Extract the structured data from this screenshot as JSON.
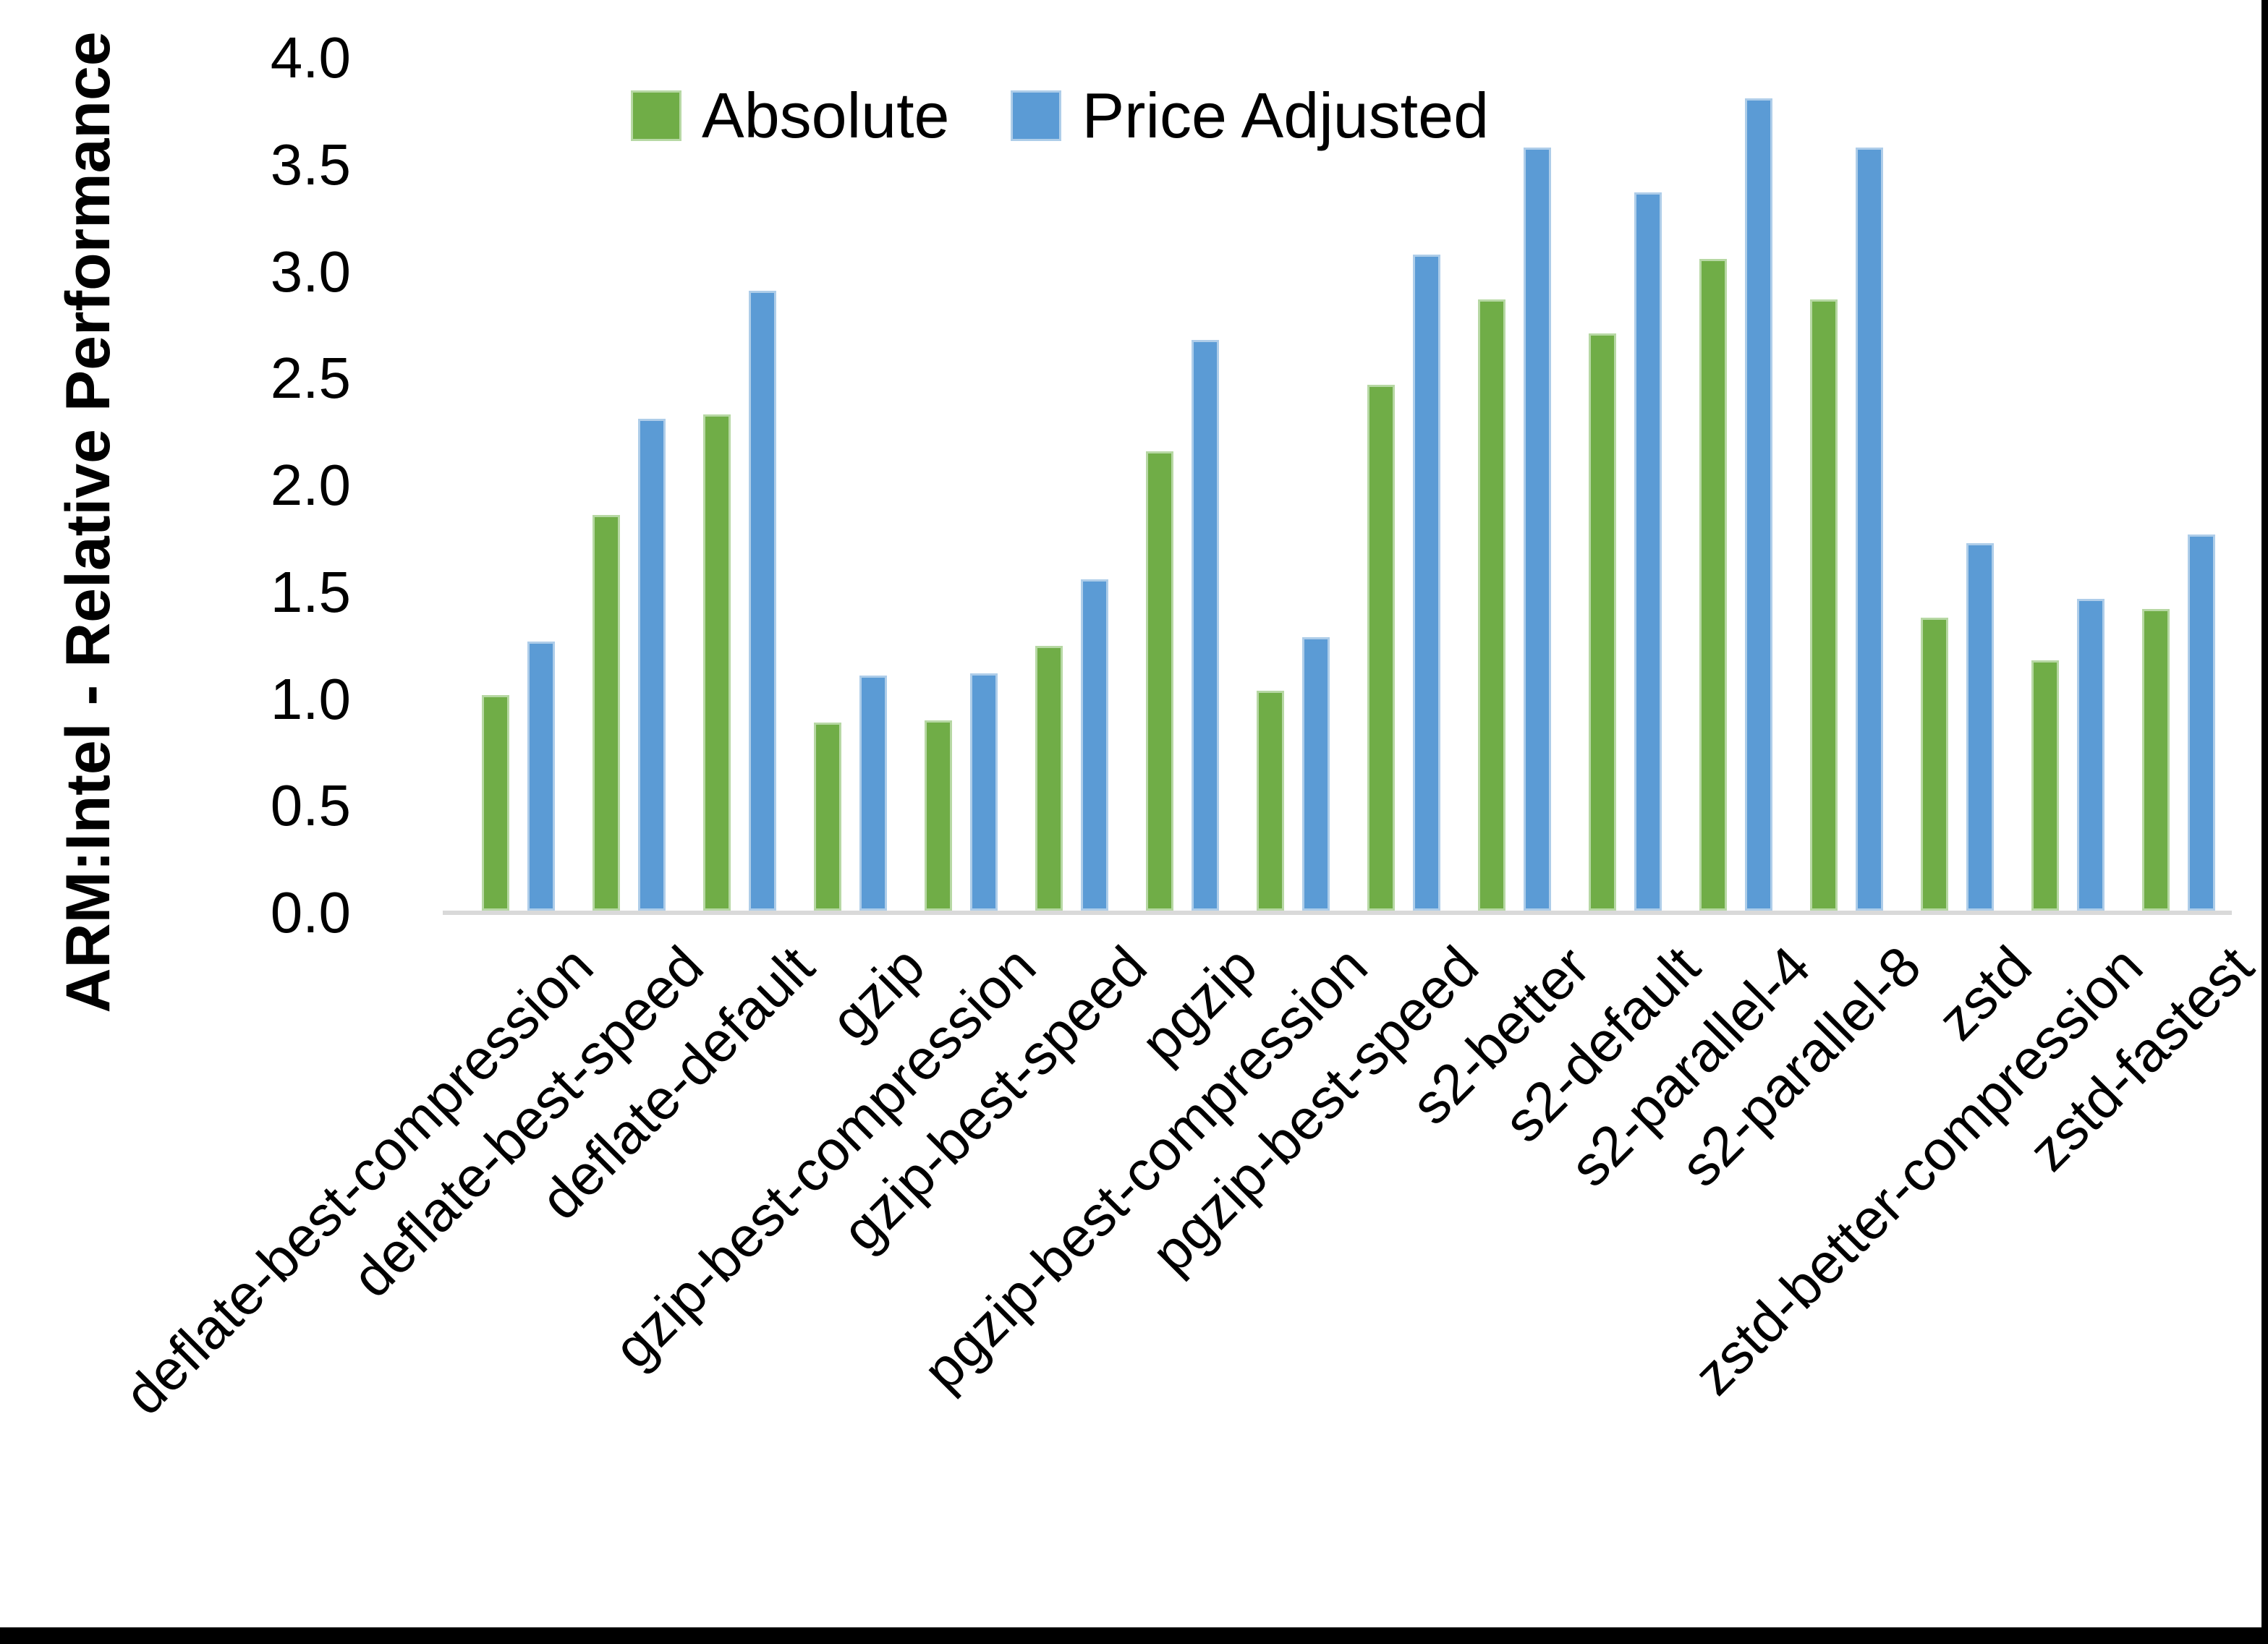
{
  "page": {
    "background": "#ffffff",
    "frame_color": "#000000"
  },
  "chart_data": {
    "type": "bar",
    "title": "",
    "ylabel": "ARM:Intel - Relative Performance",
    "xlabel": "",
    "ylim": [
      0.0,
      4.0
    ],
    "ytick_labels": [
      "0.0",
      "0.5",
      "1.0",
      "1.5",
      "2.0",
      "2.5",
      "3.0",
      "3.5",
      "4.0"
    ],
    "grid": false,
    "legend_position": "top-center",
    "axis_line_color": "#d9d9d9",
    "text_color": "#000000",
    "categories": [
      "deflate-best-compression",
      "deflate-best-speed",
      "deflate-default",
      "gzip",
      "gzip-best-compression",
      "gzip-best-speed",
      "pgzip",
      "pgzip-best-compression",
      "pgzip-best-speed",
      "s2-better",
      "s2-default",
      "s2-parallel-4",
      "s2-parallel-8",
      "zstd",
      "zstd-better-compression",
      "zstd-fastest"
    ],
    "series": [
      {
        "name": "Absolute",
        "color": "#70AD47",
        "edge_color": "#b7d8a4",
        "values": [
          1.01,
          1.85,
          2.32,
          0.88,
          0.89,
          1.24,
          2.15,
          1.03,
          2.46,
          2.86,
          2.7,
          3.05,
          2.86,
          1.37,
          1.17,
          1.41
        ]
      },
      {
        "name": "Price Adjusted",
        "color": "#5B9BD5",
        "edge_color": "#aecde9",
        "values": [
          1.26,
          2.3,
          2.9,
          1.1,
          1.11,
          1.55,
          2.67,
          1.28,
          3.07,
          3.57,
          3.36,
          3.8,
          3.57,
          1.72,
          1.46,
          1.76
        ]
      }
    ]
  }
}
